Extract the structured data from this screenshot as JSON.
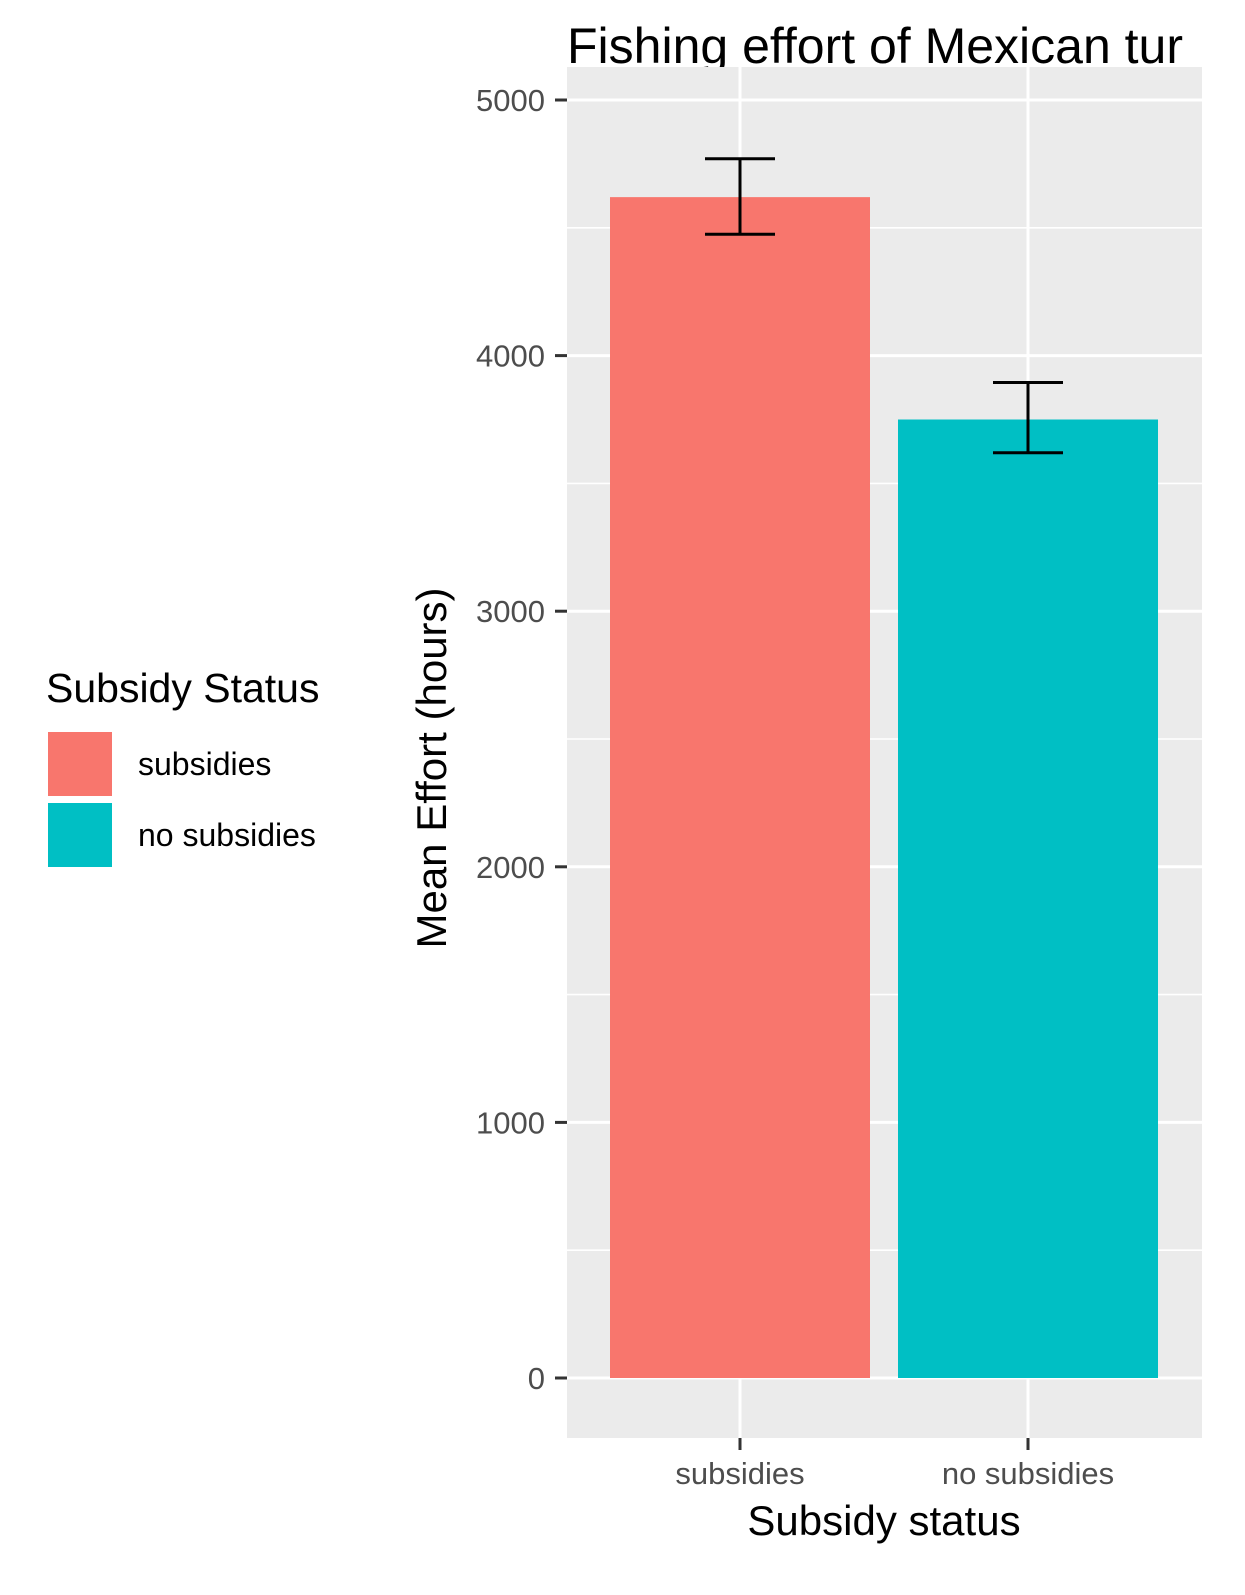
{
  "chart_data": {
    "type": "bar",
    "title": "Fishing effort of Mexican tur",
    "xlabel": "Subsidy status",
    "ylabel": "Mean Effort (hours)",
    "categories": [
      "subsidies",
      "no subsidies"
    ],
    "values": [
      4620,
      3750
    ],
    "error_bars": [
      {
        "low": 4475,
        "high": 4770
      },
      {
        "low": 3620,
        "high": 3895
      }
    ],
    "ylim": [
      -230,
      5000
    ],
    "yticks": [
      0,
      1000,
      2000,
      3000,
      4000,
      5000
    ],
    "ytick_labels": [
      "0",
      "1000",
      "2000",
      "3000",
      "4000",
      "5000"
    ],
    "grid": true,
    "legend": {
      "title": "Subsidy Status",
      "position": "left",
      "entries": [
        "subsidies",
        "no subsidies"
      ]
    },
    "colors": {
      "subsidies": "#F8766D",
      "no subsidies": "#00BFC4",
      "panel_background": "#EBEBEB",
      "grid": "#FFFFFF",
      "error_bar": "#000000"
    }
  }
}
